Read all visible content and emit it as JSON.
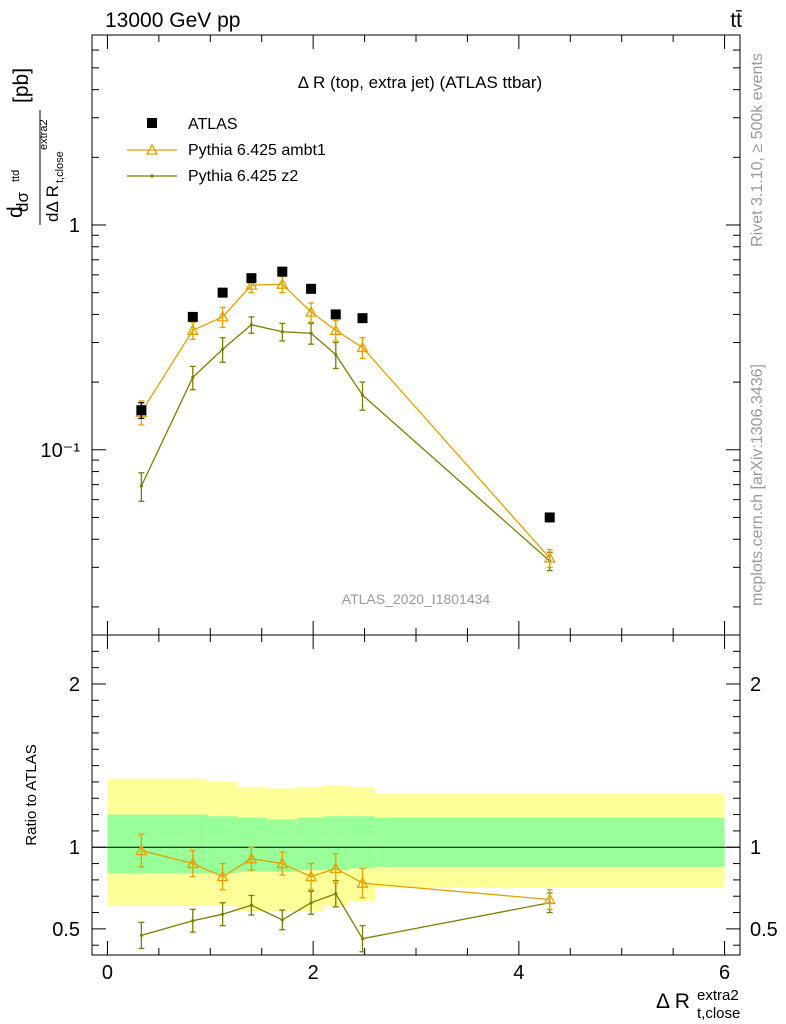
{
  "header": {
    "collision": "13000 GeV pp",
    "process": "tt̄"
  },
  "side_labels": {
    "rivet": "Rivet 3.1.10, ≥ 500k events",
    "source": "mcplots.cern.ch [arXiv:1306.3436]"
  },
  "chart_data": [
    {
      "type": "line",
      "panel": "main",
      "title": "Δ R (top, extra jet) (ATLAS ttbar)",
      "analysis_label": "ATLAS_2020_I1801434",
      "ylabel": "dσ^{ttd} / dΔ R_{t,close}^{extra2} [pb]",
      "yscale": "log",
      "xlim": [
        -0.15,
        6.15
      ],
      "ylim": [
        0.015,
        7.0
      ],
      "yticks_labeled": [
        {
          "value": 0.1,
          "label": "10⁻¹"
        },
        {
          "value": 1,
          "label": "1"
        }
      ],
      "legend": {
        "position": "top-left",
        "entries": [
          "ATLAS",
          "Pythia 6.425 ambt1",
          "Pythia 6.425 z2"
        ]
      },
      "colors": {
        "data": "#000000",
        "ambt1": "#e5a000",
        "z2": "#7d7d00"
      },
      "x": [
        0.33,
        0.83,
        1.12,
        1.4,
        1.7,
        1.98,
        2.22,
        2.48,
        4.3
      ],
      "series": [
        {
          "name": "ATLAS",
          "y": [
            0.15,
            0.39,
            0.5,
            0.58,
            0.62,
            0.52,
            0.4,
            0.385,
            0.05
          ],
          "yerr": [
            0.012,
            0.012,
            0.015,
            0.017,
            0.018,
            0.015,
            0.012,
            0.012,
            0.002
          ]
        },
        {
          "name": "Pythia 6.425 ambt1",
          "y": [
            0.147,
            0.34,
            0.39,
            0.54,
            0.545,
            0.41,
            0.34,
            0.285,
            0.033
          ],
          "yerr": [
            0.018,
            0.03,
            0.04,
            0.04,
            0.045,
            0.04,
            0.035,
            0.03,
            0.003
          ]
        },
        {
          "name": "Pythia 6.425 z2",
          "y": [
            0.069,
            0.21,
            0.28,
            0.36,
            0.335,
            0.33,
            0.265,
            0.175,
            0.032
          ],
          "yerr": [
            0.01,
            0.025,
            0.035,
            0.03,
            0.03,
            0.035,
            0.035,
            0.025,
            0.003
          ]
        }
      ]
    },
    {
      "type": "line",
      "panel": "ratio",
      "ylabel": "Ratio to ATLAS",
      "xlabel": "Δ R_{t,close}^{extra2}",
      "xlim": [
        -0.15,
        6.15
      ],
      "ylim": [
        0.34,
        2.3
      ],
      "xticks": [
        0,
        2,
        4,
        6
      ],
      "yticks": [
        0.5,
        1,
        2
      ],
      "bands": {
        "edges": [
          0,
          0.7,
          0.97,
          1.26,
          1.55,
          1.85,
          2.1,
          2.35,
          2.6,
          6
        ],
        "stat_lo": [
          0.84,
          0.84,
          0.84,
          0.85,
          0.85,
          0.86,
          0.86,
          0.87,
          0.88
        ],
        "stat_hi": [
          1.2,
          1.2,
          1.19,
          1.18,
          1.17,
          1.18,
          1.19,
          1.19,
          1.18
        ],
        "total_lo": [
          0.64,
          0.64,
          0.64,
          0.61,
          0.61,
          0.61,
          0.64,
          0.67,
          0.75
        ],
        "total_hi": [
          1.42,
          1.42,
          1.4,
          1.37,
          1.36,
          1.37,
          1.38,
          1.37,
          1.33
        ],
        "colors": {
          "stat": "#99ff99",
          "total": "#ffff99"
        }
      },
      "x": [
        0.33,
        0.83,
        1.12,
        1.4,
        1.7,
        1.98,
        2.22,
        2.48,
        4.3
      ],
      "series": [
        {
          "name": "Pythia 6.425 ambt1",
          "y": [
            0.98,
            0.9,
            0.82,
            0.93,
            0.9,
            0.82,
            0.87,
            0.78,
            0.68
          ],
          "yerr": [
            0.1,
            0.08,
            0.08,
            0.07,
            0.07,
            0.08,
            0.09,
            0.09,
            0.06
          ]
        },
        {
          "name": "Pythia 6.425 z2",
          "y": [
            0.46,
            0.55,
            0.59,
            0.645,
            0.555,
            0.66,
            0.715,
            0.44,
            0.66
          ],
          "yerr": [
            0.08,
            0.07,
            0.07,
            0.06,
            0.06,
            0.07,
            0.08,
            0.08,
            0.06
          ]
        }
      ]
    }
  ]
}
